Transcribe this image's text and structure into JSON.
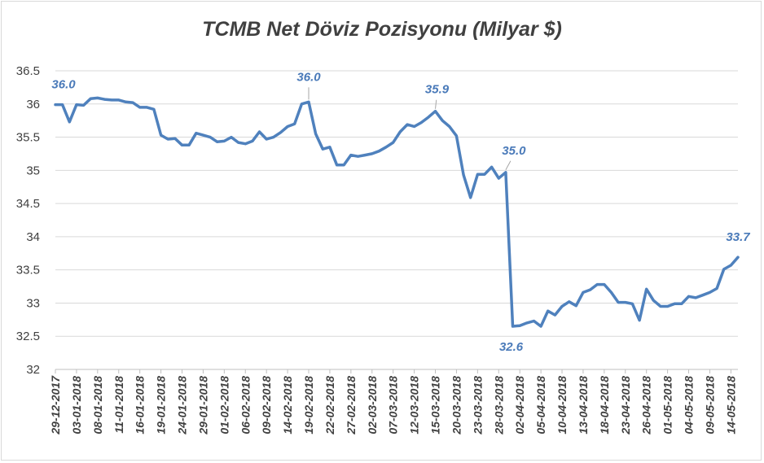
{
  "chart_data": {
    "type": "line",
    "title": "TCMB Net Döviz Pozisyonu (Milyar $)",
    "xlabel": "",
    "ylabel": "",
    "ylim": [
      32,
      36.5
    ],
    "yticks": [
      "32",
      "32.5",
      "33",
      "33.5",
      "34",
      "34.5",
      "35",
      "35.5",
      "36",
      "36.5"
    ],
    "grid": true,
    "legend": "none",
    "colors": {
      "line": "#4f81bd",
      "label": "#4a7ab9",
      "grid": "#d9d9d9"
    },
    "x_tick_labels": [
      "29-12-2017",
      "03-01-2018",
      "08-01-2018",
      "11-01-2018",
      "16-01-2018",
      "19-01-2018",
      "24-01-2018",
      "29-01-2018",
      "01-02-2018",
      "06-02-2018",
      "09-02-2018",
      "14-02-2018",
      "19-02-2018",
      "22-02-2018",
      "27-02-2018",
      "02-03-2018",
      "07-03-2018",
      "12-03-2018",
      "15-03-2018",
      "20-03-2018",
      "23-03-2018",
      "28-03-2018",
      "02-04-2018",
      "05-04-2018",
      "10-04-2018",
      "13-04-2018",
      "18-04-2018",
      "23-04-2018",
      "26-04-2018",
      "01-05-2018",
      "04-05-2018",
      "09-05-2018",
      "14-05-2018"
    ],
    "series": [
      {
        "values": [
          35.99,
          35.99,
          35.73,
          35.99,
          35.98,
          36.08,
          36.09,
          36.07,
          36.06,
          36.06,
          36.03,
          36.02,
          35.95,
          35.95,
          35.92,
          35.53,
          35.47,
          35.48,
          35.38,
          35.38,
          35.56,
          35.53,
          35.5,
          35.43,
          35.44,
          35.5,
          35.42,
          35.4,
          35.44,
          35.58,
          35.47,
          35.5,
          35.57,
          35.66,
          35.7,
          36.0,
          36.03,
          35.55,
          35.32,
          35.35,
          35.08,
          35.08,
          35.23,
          35.21,
          35.23,
          35.25,
          35.29,
          35.35,
          35.42,
          35.58,
          35.69,
          35.66,
          35.72,
          35.8,
          35.89,
          35.75,
          35.66,
          35.52,
          34.93,
          34.59,
          34.94,
          34.94,
          35.05,
          34.88,
          34.97,
          32.65,
          32.66,
          32.7,
          32.73,
          32.65,
          32.88,
          32.82,
          32.95,
          33.02,
          32.96,
          33.16,
          33.2,
          33.28,
          33.28,
          33.16,
          33.01,
          33.01,
          32.99,
          32.74,
          33.21,
          33.04,
          32.95,
          32.95,
          32.99,
          32.99,
          33.1,
          33.08,
          33.12,
          33.16,
          33.22,
          33.51,
          33.57,
          33.69
        ]
      }
    ],
    "annotations": [
      {
        "index": 0,
        "text": "36.0"
      },
      {
        "index": 36,
        "text": "36.0"
      },
      {
        "index": 54,
        "text": "35.9"
      },
      {
        "index": 64,
        "text": "35.0"
      },
      {
        "index": 65,
        "text": "32.6"
      },
      {
        "index": 97,
        "text": "33.7"
      }
    ]
  }
}
